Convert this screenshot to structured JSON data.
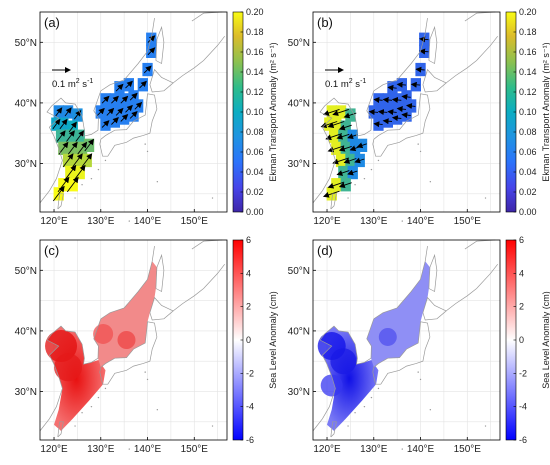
{
  "chart_data": [
    {
      "panel": "(a)",
      "type": "map-quiver",
      "xticks": [
        "120°E",
        "130°E",
        "140°E",
        "150°E"
      ],
      "yticks": [
        "30°N",
        "40°N",
        "50°N"
      ],
      "xlim_deg": [
        117,
        157
      ],
      "ylim_deg": [
        22,
        55
      ],
      "reference_vector": {
        "label_base": "0.1 m",
        "label_exp1": "2",
        "label_mid": " s",
        "label_exp2": "-1"
      },
      "colorbar": {
        "label": "Ekman Transport Anomaly (m² s⁻¹)",
        "ticks": [
          "0.00",
          "0.02",
          "0.04",
          "0.06",
          "0.08",
          "0.10",
          "0.12",
          "0.14",
          "0.16",
          "0.18",
          "0.20"
        ],
        "range": [
          0,
          0.2
        ],
        "colormap": "parula"
      },
      "field": "positive (strong in Yellow / East China Sea, weak in East/Japan Sea)"
    },
    {
      "panel": "(b)",
      "type": "map-quiver",
      "xticks": [
        "120°E",
        "130°E",
        "140°E",
        "150°E"
      ],
      "yticks": [
        "30°N",
        "40°N",
        "50°N"
      ],
      "xlim_deg": [
        117,
        157
      ],
      "ylim_deg": [
        22,
        55
      ],
      "reference_vector": {
        "label_base": "0.1 m",
        "label_exp1": "2",
        "label_mid": " s",
        "label_exp2": "-1"
      },
      "colorbar": {
        "label": "Ekman Transport Anomaly (m² s⁻¹)",
        "ticks": [
          "0.00",
          "0.02",
          "0.04",
          "0.06",
          "0.08",
          "0.10",
          "0.12",
          "0.14",
          "0.16",
          "0.18",
          "0.20"
        ],
        "range": [
          0,
          0.2
        ],
        "colormap": "parula"
      },
      "field": "strong along China coast, weak elsewhere"
    },
    {
      "panel": "(c)",
      "type": "map-heatmap",
      "xticks": [
        "120°E",
        "130°E",
        "140°E",
        "150°E"
      ],
      "yticks": [
        "30°N",
        "40°N",
        "50°N"
      ],
      "xlim_deg": [
        117,
        157
      ],
      "ylim_deg": [
        22,
        55
      ],
      "colorbar": {
        "label": "Sea Level Anomaly (cm)",
        "ticks": [
          "6",
          "4",
          "2",
          "0",
          "-2",
          "-4",
          "-6"
        ],
        "range": [
          -6,
          6
        ],
        "colormap": "blue-white-red"
      },
      "field": "positive anomaly (red) over marginal seas"
    },
    {
      "panel": "(d)",
      "type": "map-heatmap",
      "xticks": [
        "120°E",
        "130°E",
        "140°E",
        "150°E"
      ],
      "yticks": [
        "30°N",
        "40°N",
        "50°N"
      ],
      "xlim_deg": [
        117,
        157
      ],
      "ylim_deg": [
        22,
        55
      ],
      "colorbar": {
        "label": "Sea Level Anomaly (cm)",
        "ticks": [
          "6",
          "4",
          "2",
          "0",
          "-2",
          "-4",
          "-6"
        ],
        "range": [
          -6,
          6
        ],
        "colormap": "blue-white-red"
      },
      "field": "negative anomaly (blue) over marginal seas"
    }
  ]
}
